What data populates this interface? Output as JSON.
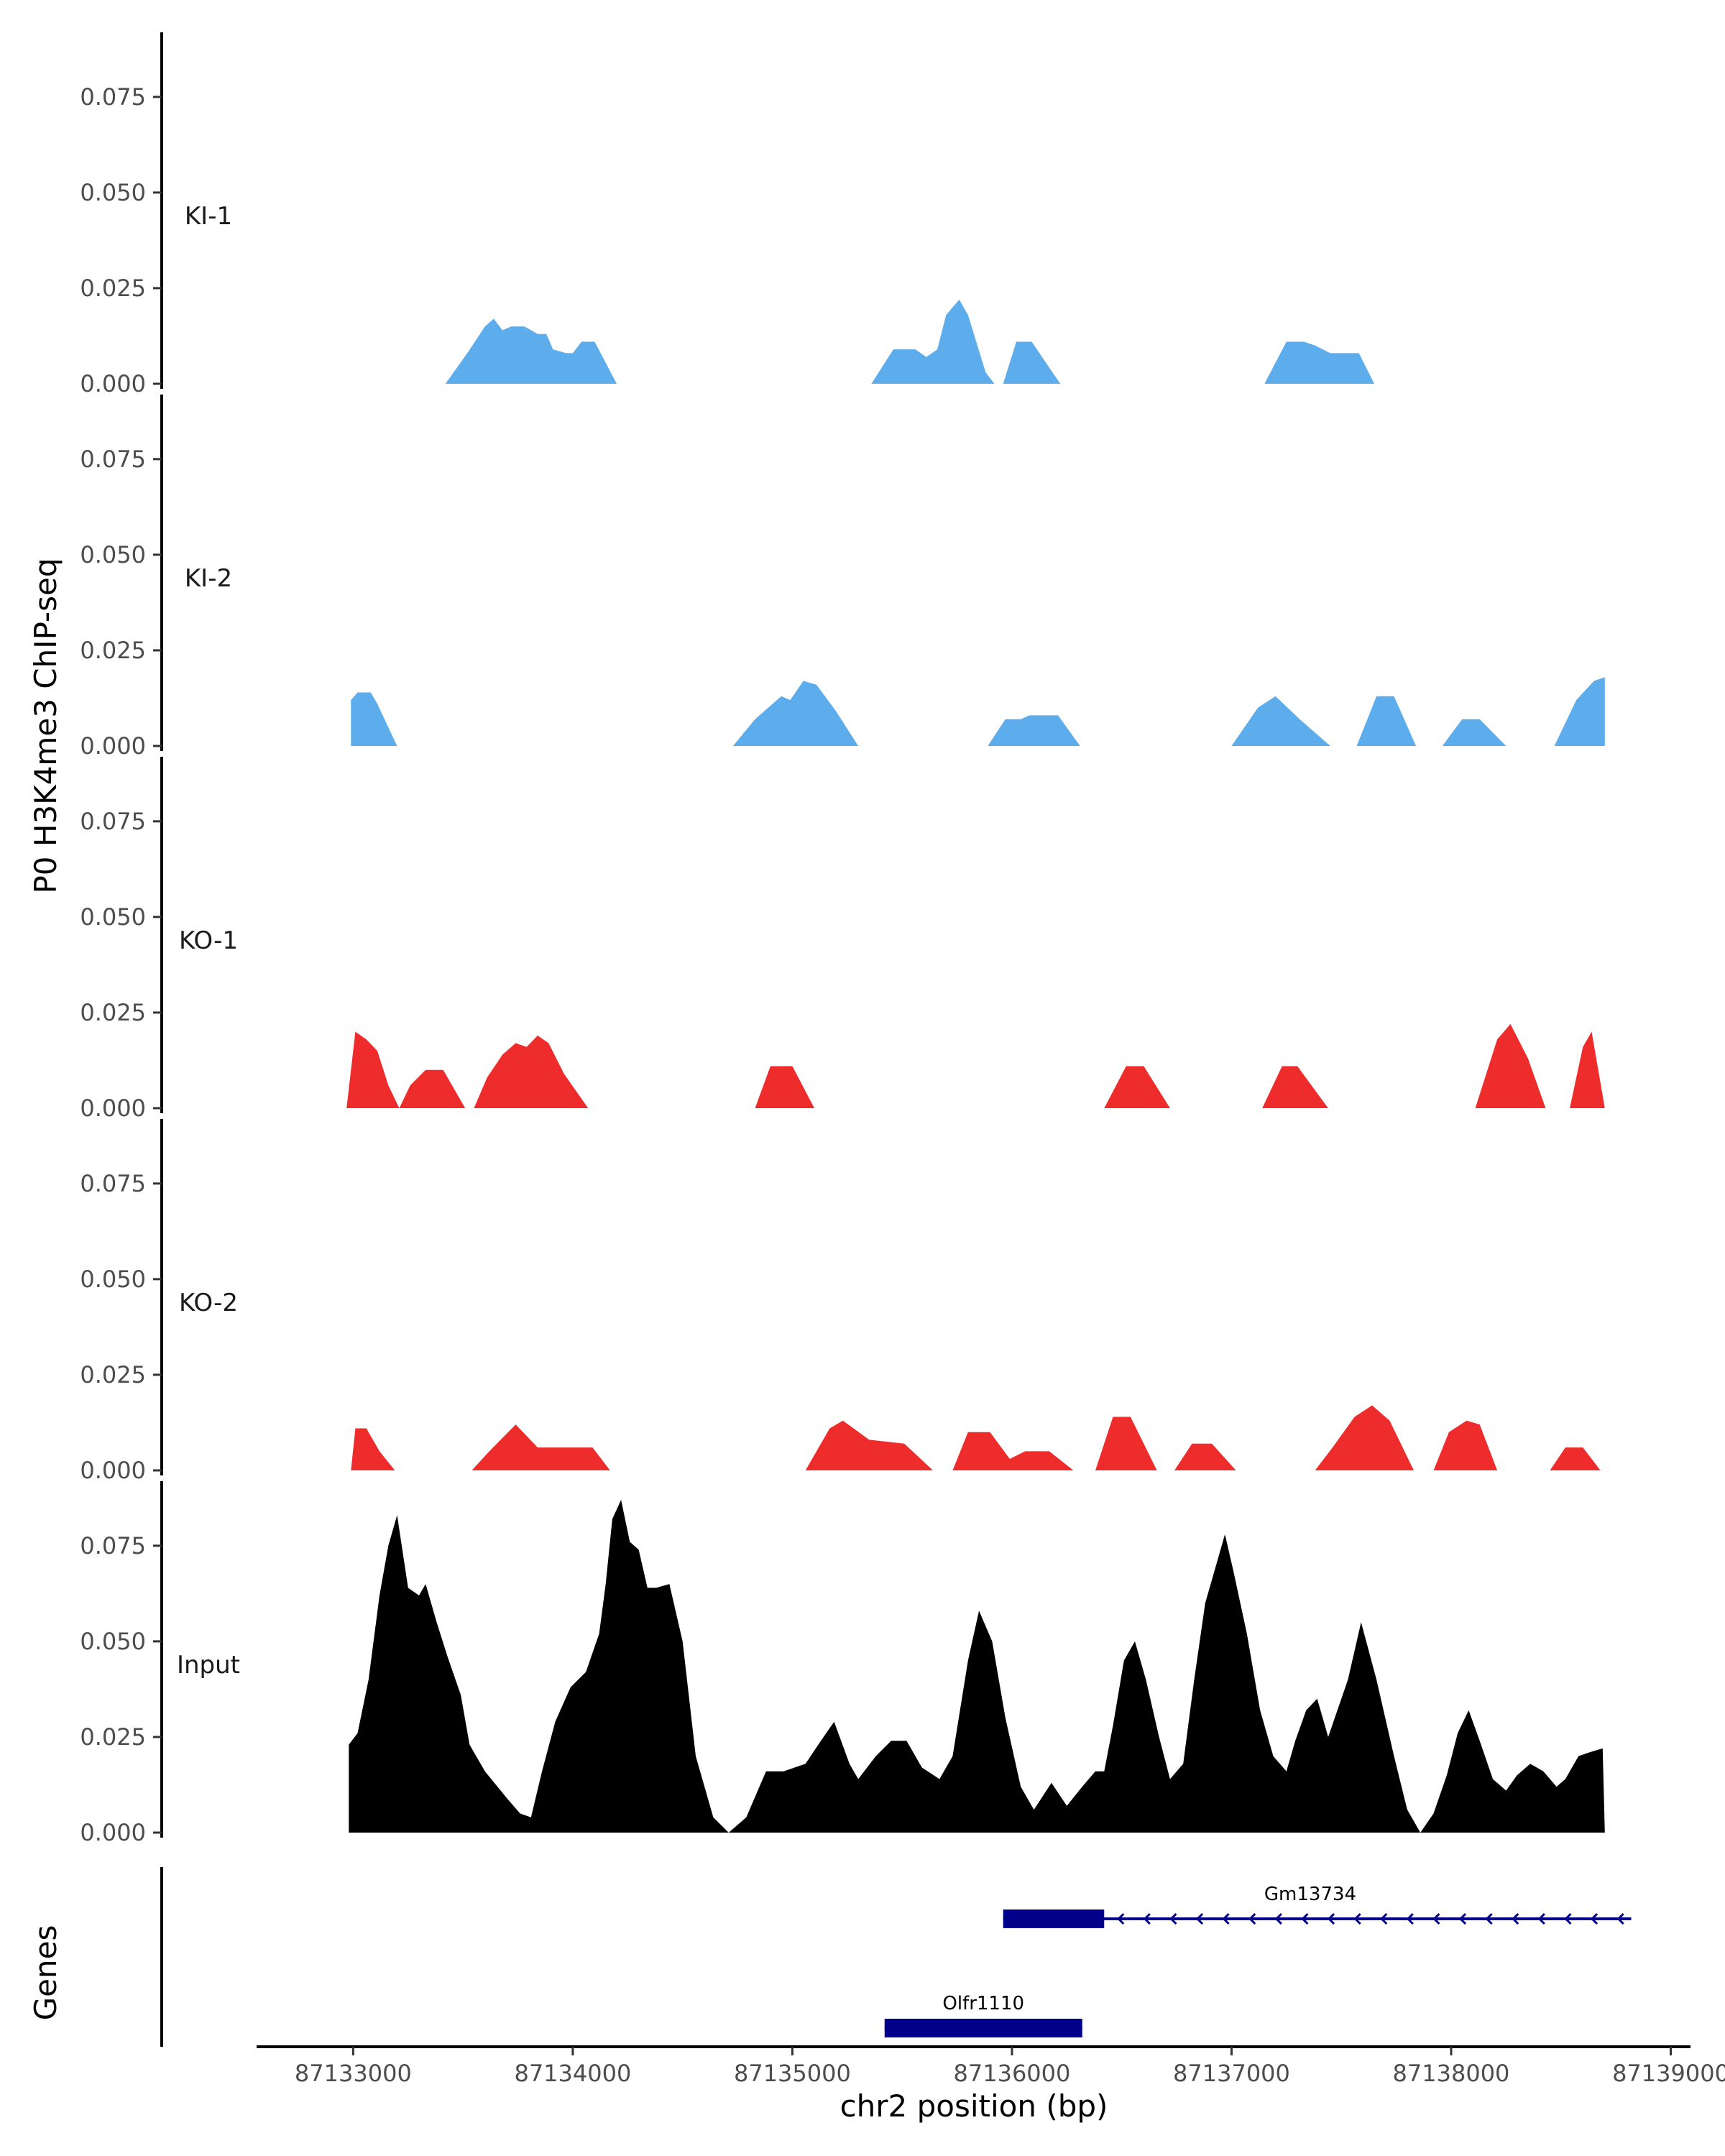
{
  "chart_data": {
    "type": "area",
    "ylabel": "P0 H3K4me3 ChIP-seq",
    "genes_label": "Genes",
    "xlabel": "chr2 position (bp)",
    "ylim": [
      0,
      0.09
    ],
    "y_ticks": [
      "0.000",
      "0.025",
      "0.050",
      "0.075"
    ],
    "y_tick_values": [
      0,
      0.025,
      0.05,
      0.075
    ],
    "xlim": [
      87132570,
      87139090
    ],
    "x_ticks": [
      "87133000",
      "87134000",
      "87135000",
      "87136000",
      "87137000",
      "87138000",
      "87139000"
    ],
    "x_tick_values": [
      87133000,
      87134000,
      87135000,
      87136000,
      87137000,
      87138000,
      87139000
    ],
    "series": [
      {
        "name": "KI-1",
        "color": "#5DADEC",
        "points": [
          [
            87133420,
            0
          ],
          [
            87133520,
            0.008
          ],
          [
            87133600,
            0.015
          ],
          [
            87133640,
            0.017
          ],
          [
            87133680,
            0.014
          ],
          [
            87133720,
            0.015
          ],
          [
            87133780,
            0.015
          ],
          [
            87133840,
            0.013
          ],
          [
            87133880,
            0.013
          ],
          [
            87133910,
            0.009
          ],
          [
            87133970,
            0.008
          ],
          [
            87134000,
            0.008
          ],
          [
            87134040,
            0.011
          ],
          [
            87134100,
            0.011
          ],
          [
            87134200,
            0
          ],
          [
            87135360,
            0
          ],
          [
            87135460,
            0.009
          ],
          [
            87135560,
            0.009
          ],
          [
            87135610,
            0.007
          ],
          [
            87135660,
            0.009
          ],
          [
            87135700,
            0.018
          ],
          [
            87135760,
            0.022
          ],
          [
            87135800,
            0.018
          ],
          [
            87135880,
            0.003
          ],
          [
            87135920,
            0
          ],
          [
            87135960,
            0
          ],
          [
            87136020,
            0.011
          ],
          [
            87136090,
            0.011
          ],
          [
            87136220,
            0
          ],
          [
            87137150,
            0
          ],
          [
            87137250,
            0.011
          ],
          [
            87137330,
            0.011
          ],
          [
            87137380,
            0.01
          ],
          [
            87137450,
            0.008
          ],
          [
            87137530,
            0.008
          ],
          [
            87137580,
            0.008
          ],
          [
            87137650,
            0
          ]
        ]
      },
      {
        "name": "KI-2",
        "color": "#5DADEC",
        "points": [
          [
            87132990,
            0
          ],
          [
            87132990,
            0.012
          ],
          [
            87133020,
            0.014
          ],
          [
            87133080,
            0.014
          ],
          [
            87133110,
            0.011
          ],
          [
            87133200,
            0
          ],
          [
            87134730,
            0
          ],
          [
            87134830,
            0.007
          ],
          [
            87134950,
            0.013
          ],
          [
            87134990,
            0.012
          ],
          [
            87135050,
            0.017
          ],
          [
            87135110,
            0.016
          ],
          [
            87135200,
            0.009
          ],
          [
            87135300,
            0
          ],
          [
            87135890,
            0
          ],
          [
            87135970,
            0.007
          ],
          [
            87136040,
            0.007
          ],
          [
            87136080,
            0.008
          ],
          [
            87136210,
            0.008
          ],
          [
            87136310,
            0
          ],
          [
            87137000,
            0
          ],
          [
            87137120,
            0.01
          ],
          [
            87137200,
            0.013
          ],
          [
            87137310,
            0.007
          ],
          [
            87137450,
            0
          ],
          [
            87137570,
            0
          ],
          [
            87137660,
            0.013
          ],
          [
            87137740,
            0.013
          ],
          [
            87137840,
            0
          ],
          [
            87137960,
            0
          ],
          [
            87138050,
            0.007
          ],
          [
            87138130,
            0.007
          ],
          [
            87138250,
            0
          ],
          [
            87138470,
            0
          ],
          [
            87138570,
            0.012
          ],
          [
            87138650,
            0.017
          ],
          [
            87138700,
            0.018
          ],
          [
            87138700,
            0
          ]
        ]
      },
      {
        "name": "KO-1",
        "color": "#EE2C2C",
        "points": [
          [
            87132970,
            0
          ],
          [
            87133010,
            0.02
          ],
          [
            87133060,
            0.018
          ],
          [
            87133110,
            0.015
          ],
          [
            87133160,
            0.006
          ],
          [
            87133210,
            0
          ],
          [
            87133260,
            0.006
          ],
          [
            87133330,
            0.01
          ],
          [
            87133410,
            0.01
          ],
          [
            87133510,
            0
          ],
          [
            87133550,
            0
          ],
          [
            87133610,
            0.008
          ],
          [
            87133680,
            0.014
          ],
          [
            87133740,
            0.017
          ],
          [
            87133790,
            0.016
          ],
          [
            87133840,
            0.019
          ],
          [
            87133890,
            0.017
          ],
          [
            87133960,
            0.009
          ],
          [
            87134070,
            0
          ],
          [
            87134830,
            0
          ],
          [
            87134900,
            0.011
          ],
          [
            87135000,
            0.011
          ],
          [
            87135100,
            0
          ],
          [
            87136420,
            0
          ],
          [
            87136520,
            0.011
          ],
          [
            87136600,
            0.011
          ],
          [
            87136720,
            0
          ],
          [
            87137140,
            0
          ],
          [
            87137230,
            0.011
          ],
          [
            87137300,
            0.011
          ],
          [
            87137440,
            0
          ],
          [
            87138110,
            0
          ],
          [
            87138210,
            0.018
          ],
          [
            87138270,
            0.022
          ],
          [
            87138350,
            0.013
          ],
          [
            87138430,
            0
          ],
          [
            87138540,
            0
          ],
          [
            87138600,
            0.016
          ],
          [
            87138640,
            0.02
          ],
          [
            87138700,
            0
          ]
        ]
      },
      {
        "name": "KO-2",
        "color": "#EE2C2C",
        "points": [
          [
            87132990,
            0
          ],
          [
            87133010,
            0.011
          ],
          [
            87133060,
            0.011
          ],
          [
            87133120,
            0.005
          ],
          [
            87133190,
            0
          ],
          [
            87133540,
            0
          ],
          [
            87133620,
            0.005
          ],
          [
            87133740,
            0.012
          ],
          [
            87133840,
            0.006
          ],
          [
            87134090,
            0.006
          ],
          [
            87134170,
            0
          ],
          [
            87135060,
            0
          ],
          [
            87135170,
            0.011
          ],
          [
            87135230,
            0.013
          ],
          [
            87135350,
            0.008
          ],
          [
            87135510,
            0.007
          ],
          [
            87135640,
            0
          ],
          [
            87135730,
            0
          ],
          [
            87135800,
            0.01
          ],
          [
            87135900,
            0.01
          ],
          [
            87135990,
            0.003
          ],
          [
            87136060,
            0.005
          ],
          [
            87136170,
            0.005
          ],
          [
            87136280,
            0
          ],
          [
            87136380,
            0
          ],
          [
            87136460,
            0.014
          ],
          [
            87136540,
            0.014
          ],
          [
            87136660,
            0
          ],
          [
            87136740,
            0
          ],
          [
            87136820,
            0.007
          ],
          [
            87136910,
            0.007
          ],
          [
            87137020,
            0
          ],
          [
            87137380,
            0
          ],
          [
            87137460,
            0.006
          ],
          [
            87137560,
            0.014
          ],
          [
            87137640,
            0.017
          ],
          [
            87137720,
            0.013
          ],
          [
            87137830,
            0
          ],
          [
            87137920,
            0
          ],
          [
            87137990,
            0.01
          ],
          [
            87138070,
            0.013
          ],
          [
            87138130,
            0.012
          ],
          [
            87138210,
            0
          ],
          [
            87138450,
            0
          ],
          [
            87138520,
            0.006
          ],
          [
            87138600,
            0.006
          ],
          [
            87138680,
            0
          ]
        ]
      },
      {
        "name": "Input",
        "color": "#000000",
        "points": [
          [
            87132980,
            0
          ],
          [
            87132980,
            0.023
          ],
          [
            87133020,
            0.026
          ],
          [
            87133070,
            0.04
          ],
          [
            87133120,
            0.062
          ],
          [
            87133160,
            0.075
          ],
          [
            87133200,
            0.083
          ],
          [
            87133250,
            0.064
          ],
          [
            87133300,
            0.062
          ],
          [
            87133330,
            0.065
          ],
          [
            87133380,
            0.055
          ],
          [
            87133430,
            0.046
          ],
          [
            87133490,
            0.036
          ],
          [
            87133530,
            0.023
          ],
          [
            87133600,
            0.016
          ],
          [
            87133700,
            0.009
          ],
          [
            87133760,
            0.005
          ],
          [
            87133810,
            0.004
          ],
          [
            87133860,
            0.016
          ],
          [
            87133920,
            0.029
          ],
          [
            87133990,
            0.038
          ],
          [
            87134060,
            0.042
          ],
          [
            87134120,
            0.052
          ],
          [
            87134150,
            0.065
          ],
          [
            87134180,
            0.082
          ],
          [
            87134220,
            0.087
          ],
          [
            87134260,
            0.076
          ],
          [
            87134300,
            0.074
          ],
          [
            87134340,
            0.064
          ],
          [
            87134380,
            0.064
          ],
          [
            87134440,
            0.065
          ],
          [
            87134500,
            0.05
          ],
          [
            87134560,
            0.02
          ],
          [
            87134640,
            0.004
          ],
          [
            87134710,
            0
          ],
          [
            87134790,
            0.004
          ],
          [
            87134880,
            0.016
          ],
          [
            87134960,
            0.016
          ],
          [
            87135060,
            0.018
          ],
          [
            87135130,
            0.024
          ],
          [
            87135190,
            0.029
          ],
          [
            87135260,
            0.018
          ],
          [
            87135300,
            0.014
          ],
          [
            87135380,
            0.02
          ],
          [
            87135450,
            0.024
          ],
          [
            87135520,
            0.024
          ],
          [
            87135590,
            0.017
          ],
          [
            87135670,
            0.014
          ],
          [
            87135730,
            0.02
          ],
          [
            87135800,
            0.045
          ],
          [
            87135850,
            0.058
          ],
          [
            87135910,
            0.05
          ],
          [
            87135970,
            0.03
          ],
          [
            87136040,
            0.012
          ],
          [
            87136100,
            0.006
          ],
          [
            87136180,
            0.013
          ],
          [
            87136250,
            0.007
          ],
          [
            87136320,
            0.012
          ],
          [
            87136380,
            0.016
          ],
          [
            87136420,
            0.016
          ],
          [
            87136460,
            0.028
          ],
          [
            87136510,
            0.045
          ],
          [
            87136560,
            0.05
          ],
          [
            87136610,
            0.04
          ],
          [
            87136670,
            0.025
          ],
          [
            87136720,
            0.014
          ],
          [
            87136780,
            0.018
          ],
          [
            87136830,
            0.04
          ],
          [
            87136880,
            0.06
          ],
          [
            87136930,
            0.07
          ],
          [
            87136970,
            0.078
          ],
          [
            87137010,
            0.068
          ],
          [
            87137070,
            0.052
          ],
          [
            87137130,
            0.032
          ],
          [
            87137190,
            0.02
          ],
          [
            87137250,
            0.016
          ],
          [
            87137290,
            0.024
          ],
          [
            87137340,
            0.032
          ],
          [
            87137390,
            0.035
          ],
          [
            87137440,
            0.025
          ],
          [
            87137470,
            0.03
          ],
          [
            87137530,
            0.04
          ],
          [
            87137590,
            0.055
          ],
          [
            87137660,
            0.04
          ],
          [
            87137740,
            0.02
          ],
          [
            87137800,
            0.006
          ],
          [
            87137860,
            0
          ],
          [
            87137920,
            0.005
          ],
          [
            87137980,
            0.015
          ],
          [
            87138030,
            0.026
          ],
          [
            87138080,
            0.032
          ],
          [
            87138130,
            0.024
          ],
          [
            87138190,
            0.014
          ],
          [
            87138250,
            0.011
          ],
          [
            87138300,
            0.015
          ],
          [
            87138360,
            0.018
          ],
          [
            87138420,
            0.016
          ],
          [
            87138480,
            0.012
          ],
          [
            87138520,
            0.014
          ],
          [
            87138580,
            0.02
          ],
          [
            87138630,
            0.021
          ],
          [
            87138690,
            0.022
          ],
          [
            87138700,
            0
          ]
        ]
      }
    ],
    "genes": [
      {
        "name": "Olfr1110",
        "start": 87135420,
        "end": 87136320,
        "exons": [
          [
            87135420,
            87136320
          ]
        ],
        "strand": "+",
        "color": "#00008B",
        "row": 2
      },
      {
        "name": "Gm13734",
        "start": 87135960,
        "end": 87138820,
        "exons": [
          [
            87135960,
            87136420
          ]
        ],
        "strand": "-",
        "color": "#00008B",
        "row": 1
      }
    ]
  }
}
